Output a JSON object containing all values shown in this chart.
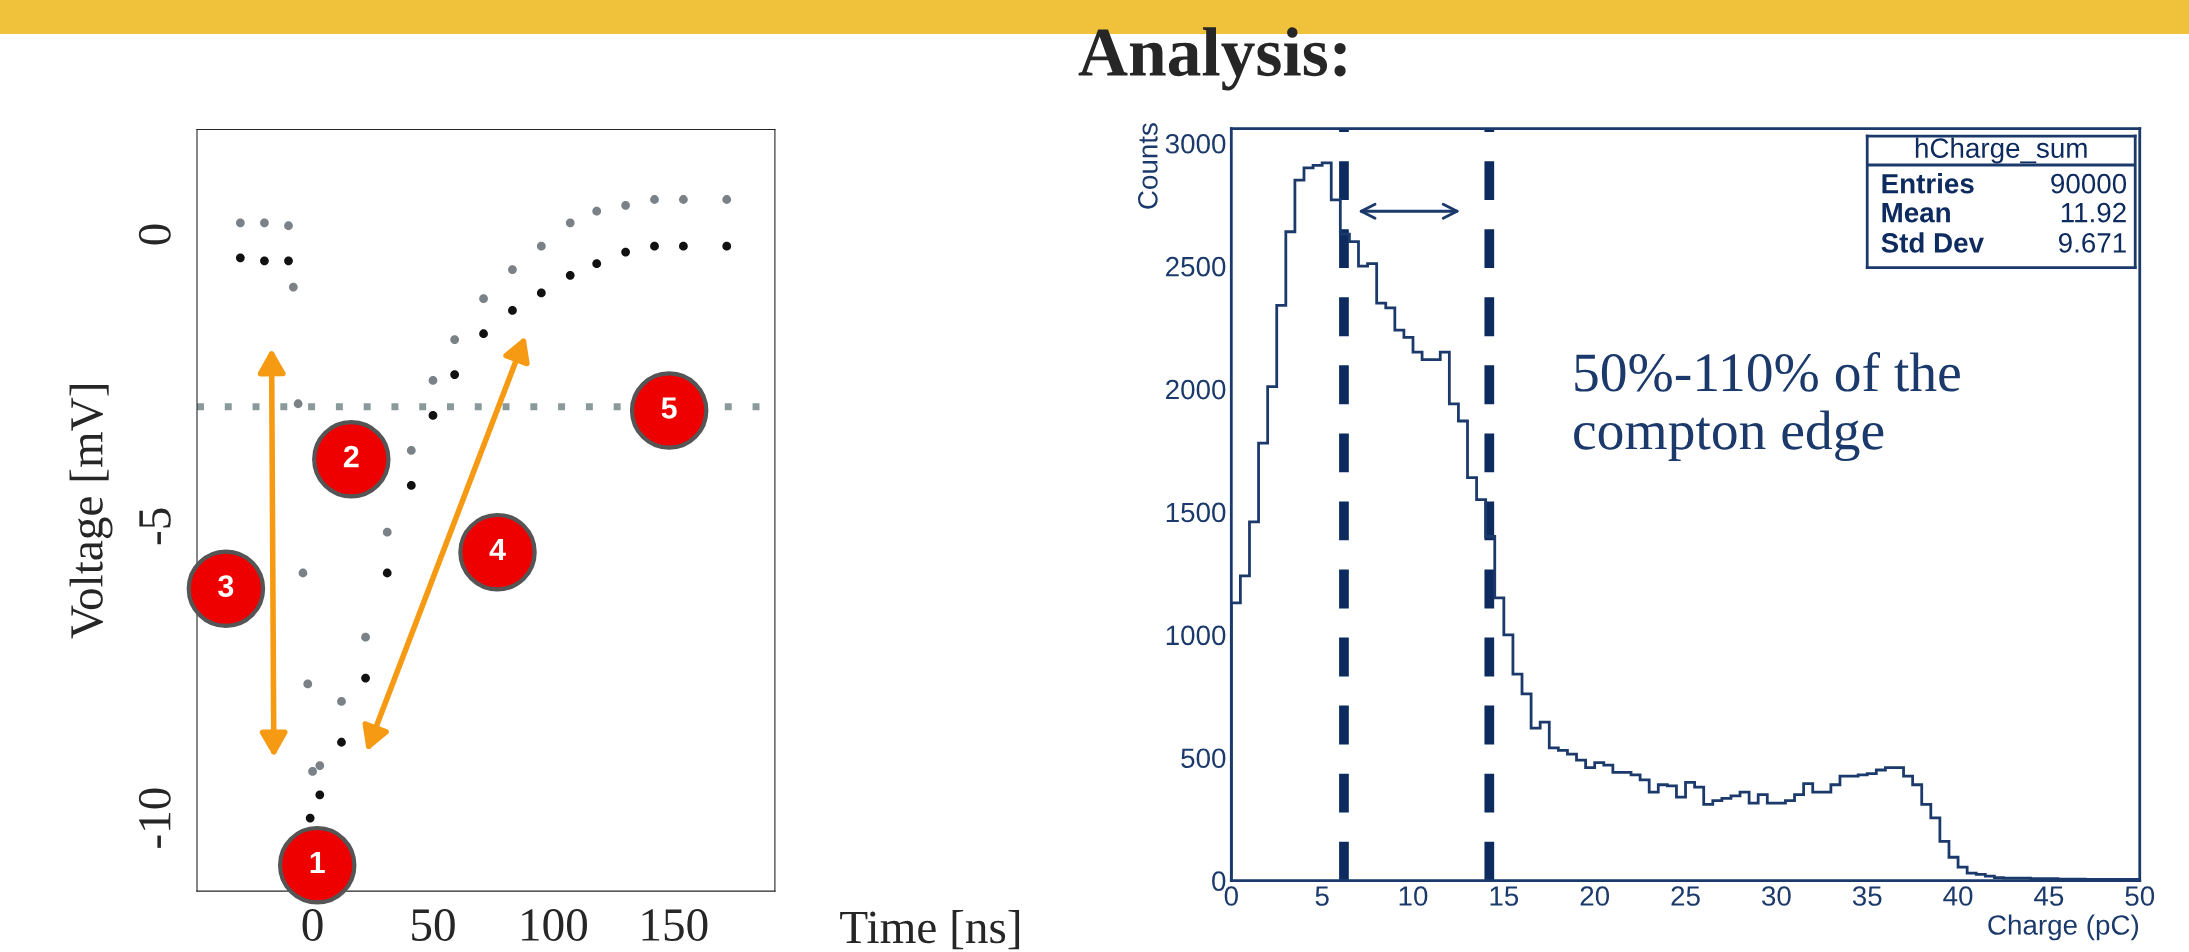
{
  "chart_data": [
    {
      "type": "scatter",
      "xlabel": "Time [ns]",
      "ylabel": "Voltage [mV]",
      "xlim": [
        -48,
        192
      ],
      "ylim": [
        -11.25,
        1.8
      ],
      "xticks": [
        0,
        50,
        100,
        150
      ],
      "yticks": [
        -10,
        -5,
        0
      ],
      "marker": "circle",
      "grid": false,
      "legend": false,
      "series": [
        {
          "color": "#7a8288",
          "x": [
            -30,
            -20,
            -10,
            -8,
            -6,
            -4,
            -2,
            0,
            3,
            12,
            22,
            31,
            41,
            50,
            59,
            71,
            83,
            95,
            107,
            118,
            130,
            142,
            154,
            172
          ],
          "values": [
            0.2,
            0.2,
            0.15,
            -0.9,
            -2.9,
            -5.8,
            -7.7,
            -9.2,
            -9.1,
            -8.0,
            -6.9,
            -5.1,
            -3.7,
            -2.5,
            -1.8,
            -1.1,
            -0.6,
            -0.2,
            0.2,
            0.4,
            0.5,
            0.6,
            0.6,
            0.6
          ]
        },
        {
          "color": "#111111",
          "x": [
            -30,
            -20,
            -10,
            -1,
            3,
            12,
            22,
            31,
            41,
            50,
            59,
            71,
            83,
            95,
            107,
            118,
            130,
            142,
            154,
            172
          ],
          "values": [
            -0.4,
            -0.45,
            -0.45,
            -10.0,
            -9.6,
            -8.7,
            -7.6,
            -5.8,
            -4.3,
            -3.1,
            -2.4,
            -1.7,
            -1.3,
            -1.0,
            -0.7,
            -0.5,
            -0.3,
            -0.2,
            -0.2,
            -0.2
          ]
        }
      ],
      "ref_lines": [
        {
          "axis": "y",
          "value": -2.95,
          "color": "#8a9a9a",
          "line_style": "dotted"
        }
      ],
      "annotations": [
        "1",
        "2",
        "3",
        "4",
        "5"
      ]
    },
    {
      "type": "histogram",
      "title": "Analysis:",
      "xlabel": "Charge (pC)",
      "ylabel": "Counts",
      "xlim": [
        0,
        50
      ],
      "ylim": [
        0,
        3060
      ],
      "xticks": [
        0,
        5,
        10,
        15,
        20,
        25,
        30,
        35,
        40,
        45,
        50
      ],
      "yticks": [
        0,
        500,
        1000,
        1500,
        2000,
        2500,
        3000
      ],
      "color": "#1b3a6b",
      "grid": false,
      "legend": false,
      "bins": [
        0,
        0.5,
        1,
        1.5,
        2,
        2.5,
        3,
        3.5,
        4,
        4.5,
        5,
        5.5,
        6,
        6.5,
        7,
        7.5,
        8,
        8.5,
        9,
        9.5,
        10,
        10.5,
        11,
        11.5,
        12,
        12.5,
        13,
        13.5,
        14,
        14.5,
        15,
        15.5,
        16,
        16.5,
        17,
        17.5,
        18,
        18.5,
        19,
        19.5,
        20,
        20.5,
        21,
        21.5,
        22,
        22.5,
        23,
        23.5,
        24,
        24.5,
        25,
        25.5,
        26,
        26.5,
        27,
        27.5,
        28,
        28.5,
        29,
        29.5,
        30,
        30.5,
        31,
        31.5,
        32,
        32.5,
        33,
        33.5,
        34,
        34.5,
        35,
        35.5,
        36,
        36.5,
        37,
        37.5,
        38,
        38.5,
        39,
        39.5,
        40,
        40.5,
        41,
        41.5,
        42,
        42.5,
        43,
        43.5,
        44,
        44.5,
        45,
        45.5,
        46,
        46.5,
        47,
        47.5,
        48,
        48.5,
        49,
        49.5,
        50
      ],
      "values": [
        1130,
        1240,
        1460,
        1780,
        2010,
        2340,
        2640,
        2850,
        2900,
        2910,
        2920,
        2770,
        2630,
        2600,
        2500,
        2510,
        2350,
        2330,
        2240,
        2210,
        2150,
        2120,
        2120,
        2150,
        1940,
        1870,
        1640,
        1550,
        1400,
        1150,
        1000,
        840,
        760,
        620,
        645,
        540,
        530,
        515,
        490,
        460,
        480,
        470,
        440,
        440,
        430,
        410,
        360,
        390,
        385,
        340,
        400,
        380,
        310,
        325,
        335,
        345,
        360,
        315,
        350,
        315,
        315,
        325,
        350,
        395,
        360,
        360,
        390,
        425,
        425,
        430,
        435,
        450,
        460,
        460,
        425,
        390,
        310,
        255,
        160,
        95,
        55,
        30,
        25,
        18,
        12,
        10,
        10,
        10,
        8,
        8,
        8,
        6,
        6,
        6,
        5,
        5,
        5,
        5,
        5,
        5
      ],
      "ref_lines": [
        {
          "axis": "x",
          "value": 6.2,
          "color": "#0d2b5e",
          "line_style": "dashed"
        },
        {
          "axis": "x",
          "value": 14.2,
          "color": "#0d2b5e",
          "line_style": "dashed"
        }
      ],
      "annotations": [
        "50%-110% of the\ncompton edge",
        "hCharge_sum",
        "Entries",
        "90000",
        "Mean",
        "11.92",
        "Std Dev",
        "9.671"
      ]
    }
  ]
}
